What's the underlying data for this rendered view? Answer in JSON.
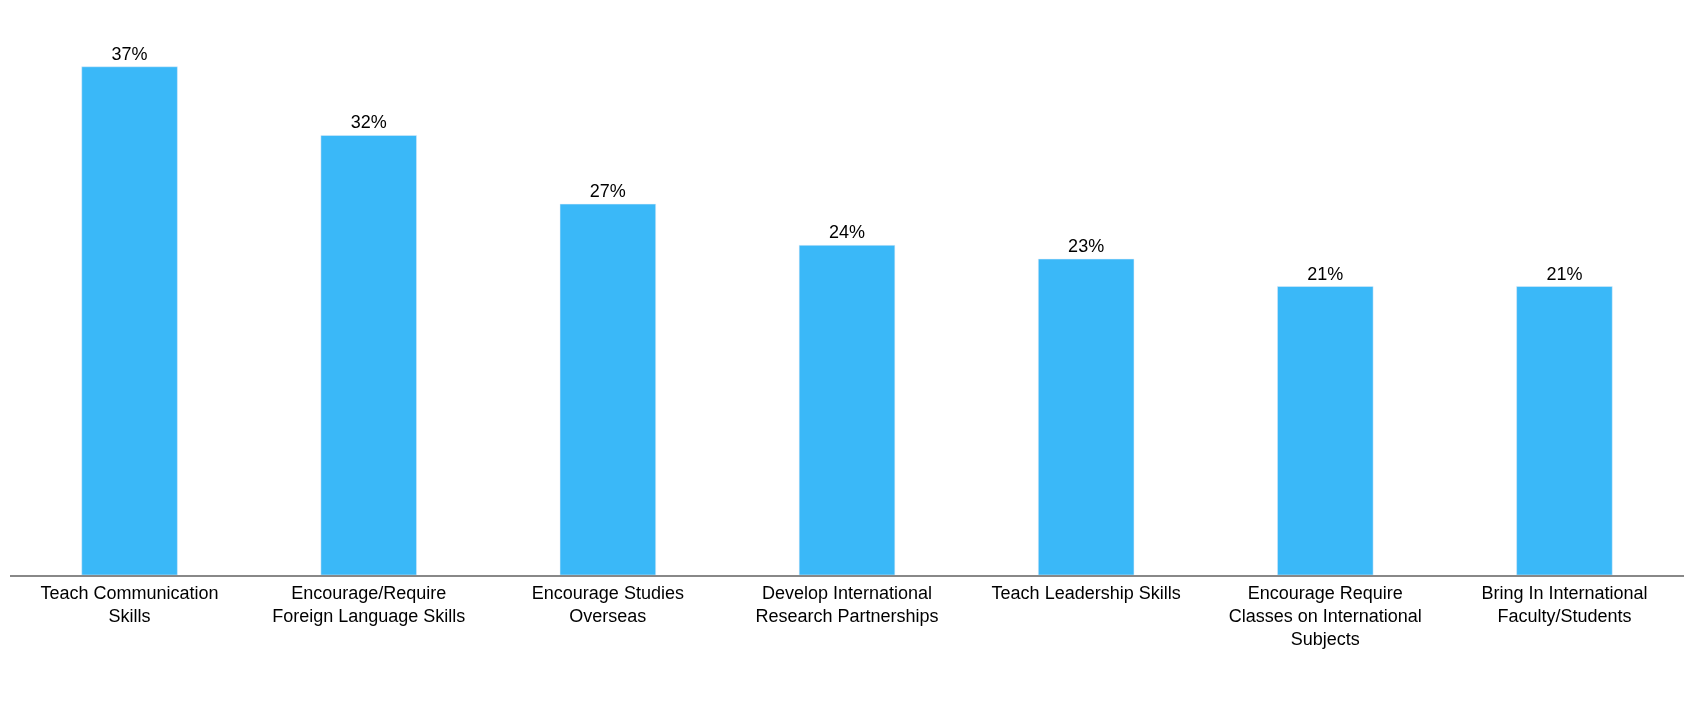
{
  "chart_data": {
    "type": "bar",
    "categories": [
      "Teach Communication Skills",
      "Encourage/Require Foreign Language Skills",
      "Encourage Studies Overseas",
      "Develop International Research Partnerships",
      "Teach Leadership Skills",
      "Encourage Require Classes on International Subjects",
      "Bring In International Faculty/Students"
    ],
    "values": [
      37,
      32,
      27,
      24,
      23,
      21,
      21
    ],
    "value_labels": [
      "37%",
      "32%",
      "27%",
      "24%",
      "23%",
      "21%",
      "21%"
    ],
    "color": "#3ab8f8"
  }
}
